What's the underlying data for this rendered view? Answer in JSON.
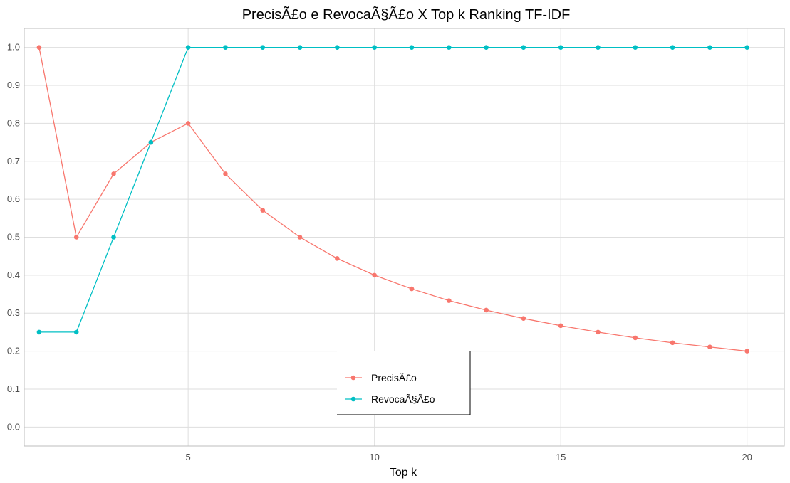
{
  "chart_data": {
    "type": "line",
    "title": "PrecisÃ£o e RevocaÃ§Ã£o X Top k Ranking TF-IDF",
    "xlabel": "Top k",
    "ylabel": "",
    "x": [
      1,
      2,
      3,
      4,
      5,
      6,
      7,
      8,
      9,
      10,
      11,
      12,
      13,
      14,
      15,
      16,
      17,
      18,
      19,
      20
    ],
    "xlim": [
      0.6,
      21
    ],
    "ylim": [
      -0.05,
      1.05
    ],
    "x_ticks": [
      5,
      10,
      15,
      20
    ],
    "x_tick_labels": [
      "5",
      "10",
      "15",
      "20"
    ],
    "y_ticks": [
      0.0,
      0.1,
      0.2,
      0.3,
      0.4,
      0.5,
      0.6,
      0.7,
      0.8,
      0.9,
      1.0
    ],
    "y_tick_labels": [
      "0.0",
      "0.1",
      "0.2",
      "0.3",
      "0.4",
      "0.5",
      "0.6",
      "0.7",
      "0.8",
      "0.9",
      "1.0"
    ],
    "grid": true,
    "legend_position": "bottom-center",
    "series": [
      {
        "name": "PrecisÃ£o",
        "color": "#F8766D",
        "values": [
          1.0,
          0.5,
          0.667,
          0.75,
          0.8,
          0.667,
          0.571,
          0.5,
          0.444,
          0.4,
          0.364,
          0.333,
          0.308,
          0.286,
          0.267,
          0.25,
          0.235,
          0.222,
          0.211,
          0.2
        ]
      },
      {
        "name": "RevocaÃ§Ã£o",
        "color": "#00BFC4",
        "values": [
          0.25,
          0.25,
          0.5,
          0.75,
          1.0,
          1.0,
          1.0,
          1.0,
          1.0,
          1.0,
          1.0,
          1.0,
          1.0,
          1.0,
          1.0,
          1.0,
          1.0,
          1.0,
          1.0,
          1.0
        ]
      }
    ]
  }
}
